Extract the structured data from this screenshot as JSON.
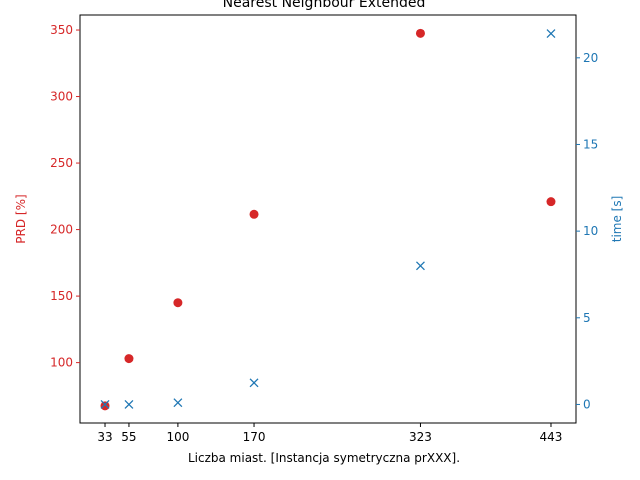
{
  "chart_data": {
    "type": "scatter",
    "title": "Nearest Neighbour Extended",
    "xlabel": "Liczba miast. [Instancja symetryczna prXXX].",
    "ylabel_left": "PRD [%]",
    "ylabel_right": "time [s]",
    "x_ticks": [
      33,
      55,
      100,
      170,
      323,
      443
    ],
    "x_tick_labels": [
      "33",
      "55",
      "100",
      "170",
      "323",
      "443"
    ],
    "xlim": [
      10,
      466
    ],
    "y_left_ticks": [
      100,
      150,
      200,
      250,
      300,
      350
    ],
    "y_left_tick_labels": [
      "100",
      "150",
      "200",
      "250",
      "300",
      "350"
    ],
    "y_left_lim": [
      54.6,
      361.3
    ],
    "y_right_ticks": [
      0,
      5,
      10,
      15,
      20
    ],
    "y_right_tick_labels": [
      "0",
      "5",
      "10",
      "15",
      "20"
    ],
    "y_right_lim": [
      -1.07,
      22.47
    ],
    "grid": false,
    "series": [
      {
        "name": "PRD",
        "axis": "left",
        "marker": "circle",
        "color": "#d62728",
        "x": [
          33,
          55,
          100,
          170,
          323,
          443
        ],
        "y": [
          67.5,
          103,
          145,
          211.5,
          347.5,
          221
        ]
      },
      {
        "name": "time",
        "axis": "right",
        "marker": "x",
        "color": "#1f77b4",
        "x": [
          33,
          55,
          100,
          170,
          323,
          443
        ],
        "y": [
          0.0,
          0.0,
          0.1,
          1.25,
          8.0,
          21.4
        ]
      }
    ]
  }
}
